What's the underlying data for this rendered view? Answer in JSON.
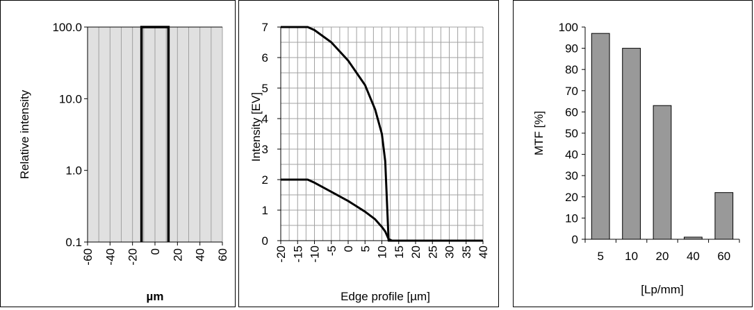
{
  "chart_data": [
    {
      "type": "line",
      "xlabel": "µm",
      "ylabel": "Relative intensity",
      "xlim": [
        -60,
        60
      ],
      "x_ticks": [
        "-60",
        "-40",
        "-20",
        "0",
        "20",
        "40",
        "60"
      ],
      "ylim": [
        0.1,
        100
      ],
      "y_scale": "log",
      "y_ticks": [
        "0.1",
        "1.0",
        "10.0",
        "100.0"
      ],
      "grid": true,
      "plot_background": "#e0e0e0",
      "series": [
        {
          "x": [
            -12,
            -12,
            12,
            12
          ],
          "y": [
            0.1,
            100,
            100,
            0.1
          ]
        }
      ]
    },
    {
      "type": "line",
      "xlabel": "Edge profile [µm]",
      "ylabel": "Intensity [EV]",
      "xlim": [
        -20,
        40
      ],
      "x_ticks": [
        "-20",
        "-15",
        "-10",
        "-5",
        "0",
        "5",
        "10",
        "15",
        "20",
        "25",
        "30",
        "35",
        "40"
      ],
      "ylim": [
        0,
        7
      ],
      "y_ticks": [
        "0",
        "1",
        "2",
        "3",
        "4",
        "5",
        "6",
        "7"
      ],
      "grid": true,
      "series": [
        {
          "x": [
            -20,
            -12,
            -10,
            -5,
            0,
            5,
            8,
            10,
            11,
            12,
            13,
            20,
            30,
            40
          ],
          "y": [
            7,
            7,
            6.9,
            6.5,
            5.9,
            5.1,
            4.3,
            3.5,
            2.6,
            0,
            0,
            0,
            0,
            0
          ]
        },
        {
          "x": [
            -20,
            -15,
            -12,
            -10,
            -5,
            0,
            5,
            8,
            10,
            11,
            12,
            13
          ],
          "y": [
            2,
            2,
            2,
            1.9,
            1.6,
            1.3,
            0.95,
            0.7,
            0.45,
            0.3,
            0.05,
            0
          ]
        }
      ]
    },
    {
      "type": "bar",
      "xlabel": "[Lp/mm]",
      "ylabel": "MTF [%]",
      "categories": [
        "5",
        "10",
        "20",
        "40",
        "60"
      ],
      "values": [
        97,
        90,
        63,
        1,
        22
      ],
      "ylim": [
        0,
        100
      ],
      "y_ticks": [
        "0",
        "10",
        "20",
        "30",
        "40",
        "50",
        "60",
        "70",
        "80",
        "90",
        "100"
      ],
      "bar_color": "#999999",
      "grid": false
    }
  ]
}
